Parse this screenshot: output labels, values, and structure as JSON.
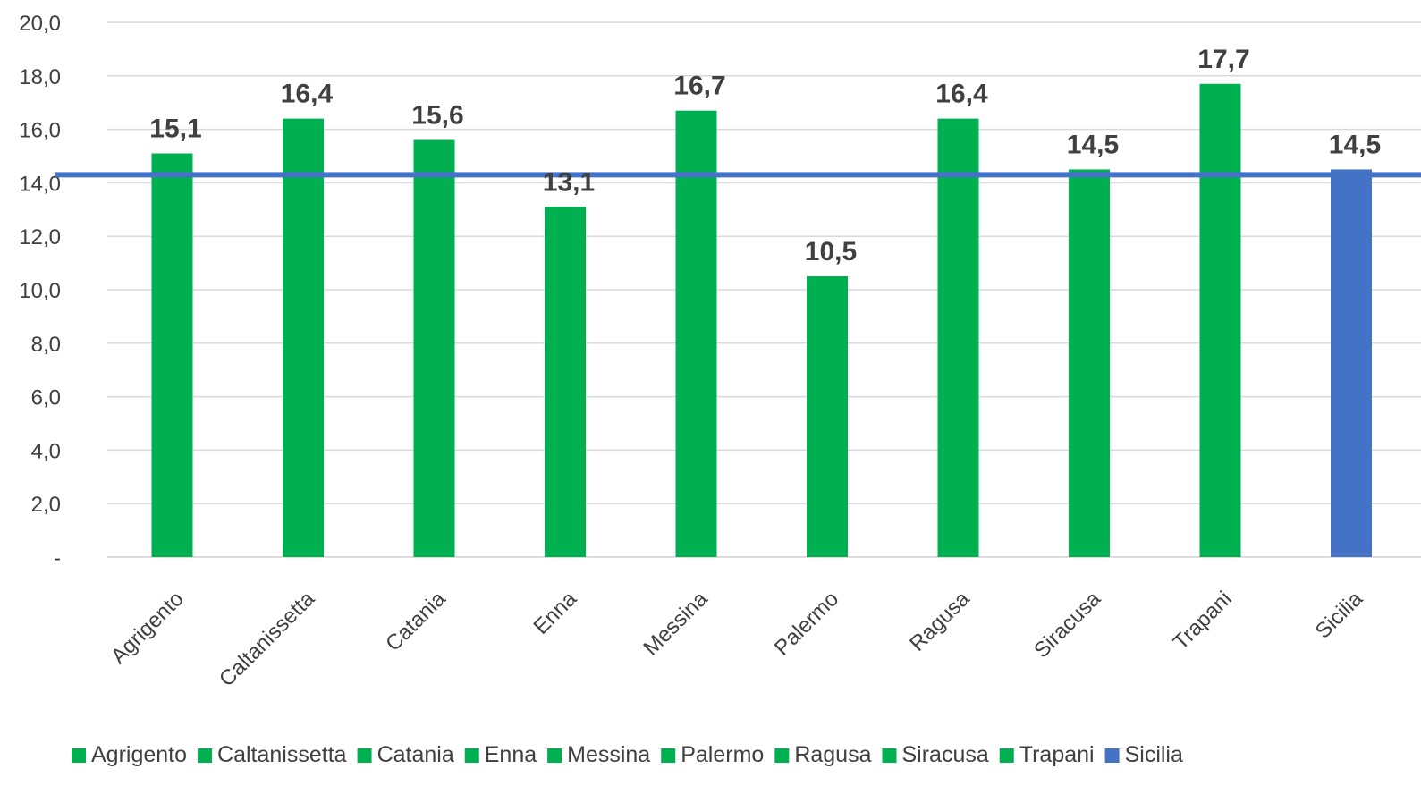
{
  "chart_data": {
    "type": "bar",
    "categories": [
      "Agrigento",
      "Caltanissetta",
      "Catania",
      "Enna",
      "Messina",
      "Palermo",
      "Ragusa",
      "Siracusa",
      "Trapani",
      "Sicilia"
    ],
    "values": [
      15.1,
      16.4,
      15.6,
      13.1,
      16.7,
      10.5,
      16.4,
      14.5,
      17.7,
      14.5
    ],
    "value_labels": [
      "15,1",
      "16,4",
      "15,6",
      "13,1",
      "16,7",
      "10,5",
      "16,4",
      "14,5",
      "17,7",
      "14,5"
    ],
    "bar_colors": [
      "#00b050",
      "#00b050",
      "#00b050",
      "#00b050",
      "#00b050",
      "#00b050",
      "#00b050",
      "#00b050",
      "#00b050",
      "#4472c4"
    ],
    "ylim": [
      0,
      20
    ],
    "yticks": [
      0,
      2,
      4,
      6,
      8,
      10,
      12,
      14,
      16,
      18,
      20
    ],
    "ytick_labels": [
      "-",
      "2,0",
      "4,0",
      "6,0",
      "8,0",
      "10,0",
      "12,0",
      "14,0",
      "16,0",
      "18,0",
      "20,0"
    ],
    "reference_line": {
      "value": 14.3,
      "color": "#4472c4"
    },
    "grid": true,
    "legend": {
      "position": "bottom",
      "entries": [
        "Agrigento",
        "Caltanissetta",
        "Catania",
        "Enna",
        "Messina",
        "Palermo",
        "Ragusa",
        "Siracusa",
        "Trapani",
        "Sicilia"
      ]
    },
    "title": "",
    "xlabel": "",
    "ylabel": ""
  }
}
